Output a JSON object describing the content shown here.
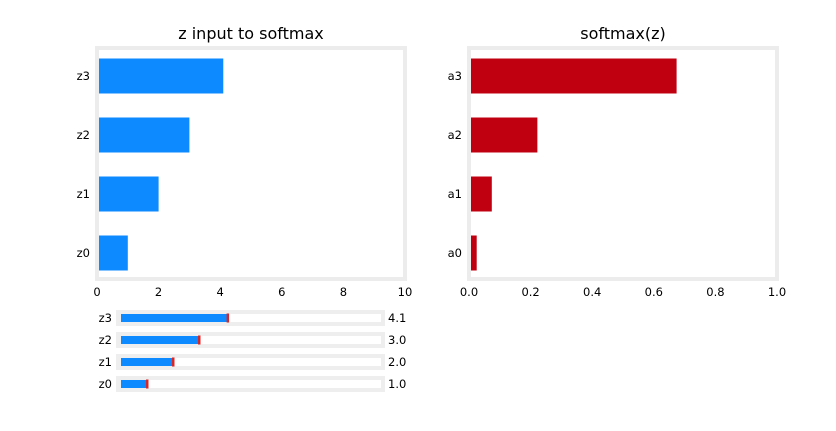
{
  "chart_data": [
    {
      "type": "bar",
      "orientation": "horizontal",
      "title": "z input to softmax",
      "categories": [
        "z0",
        "z1",
        "z2",
        "z3"
      ],
      "values": [
        1.0,
        2.0,
        3.0,
        4.1
      ],
      "xlim": [
        0,
        10
      ],
      "xticks": [
        "0",
        "2",
        "4",
        "6",
        "8",
        "10"
      ],
      "color": "#0d8aff",
      "grid": false
    },
    {
      "type": "bar",
      "orientation": "horizontal",
      "title": "softmax(z)",
      "categories": [
        "a0",
        "a1",
        "a2",
        "a3"
      ],
      "values": [
        0.025,
        0.074,
        0.222,
        0.674
      ],
      "xlim": [
        0,
        1.0
      ],
      "xticks": [
        "0.0",
        "0.2",
        "0.4",
        "0.6",
        "0.8",
        "1.0"
      ],
      "color": "#c00010",
      "grid": false
    }
  ],
  "sliders": {
    "min": 0,
    "max": 10,
    "fill_color": "#0d8aff",
    "handle_color": "#d62728",
    "items": [
      {
        "label": "z3",
        "value": 4.1,
        "value_text": "4.1"
      },
      {
        "label": "z2",
        "value": 3.0,
        "value_text": "3.0"
      },
      {
        "label": "z1",
        "value": 2.0,
        "value_text": "2.0"
      },
      {
        "label": "z0",
        "value": 1.0,
        "value_text": "1.0"
      }
    ]
  }
}
